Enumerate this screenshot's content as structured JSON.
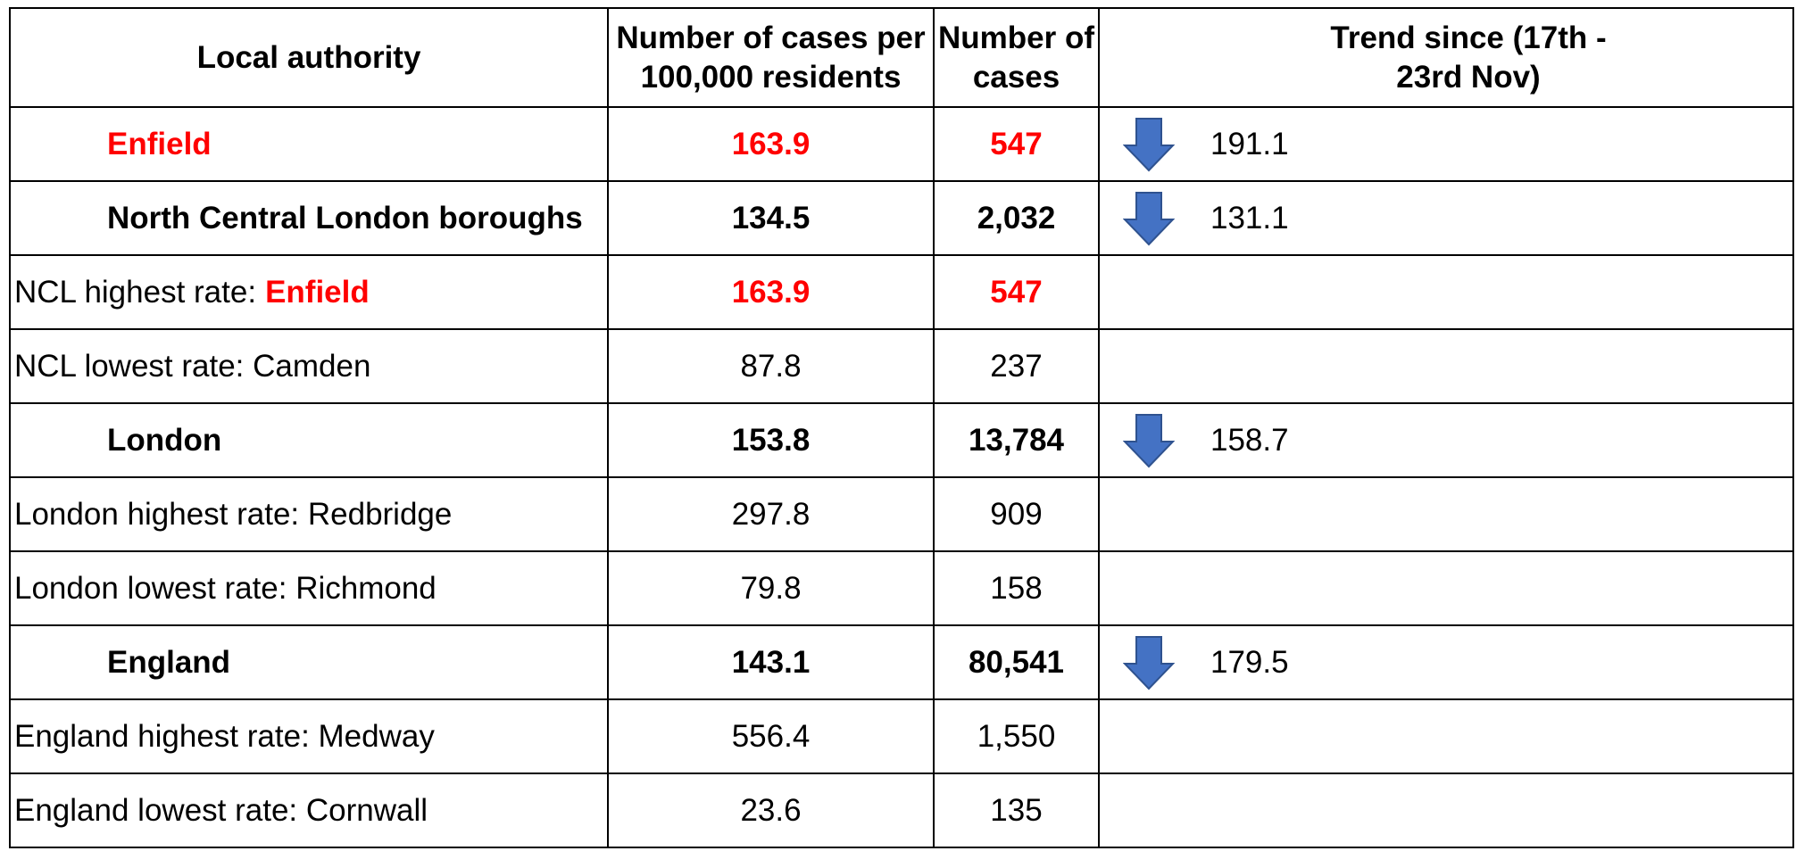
{
  "table": {
    "header": [
      "Local authority",
      "Number of cases per 100,000 residents",
      "Number of cases",
      "Trend since (17th - 23rd Nov)"
    ],
    "rows": [
      {
        "label": "Enfield",
        "rate": 163.9,
        "cases": 547,
        "trend": 191.1
      },
      {
        "label": "North Central London boroughs",
        "rate": 134.5,
        "cases": "2,032",
        "trend": 131.1
      },
      {
        "label": "NCL highest rate:",
        "label_highlight": "Enfield",
        "rate": 163.9,
        "cases": 547
      },
      {
        "label": "NCL lowest rate: Camden",
        "rate": 87.8,
        "cases": 237
      },
      {
        "label": "London",
        "rate": 153.8,
        "cases": "13,784",
        "trend": 158.7
      },
      {
        "label": "London highest rate: Redbridge",
        "rate": 297.8,
        "cases": 909
      },
      {
        "label": "London lowest rate: Richmond",
        "rate": 79.8,
        "cases": 158
      },
      {
        "label": "England",
        "rate": 143.1,
        "cases": "80,541",
        "trend": 179.5
      },
      {
        "label": "England highest rate: Medway",
        "rate": 556.4,
        "cases": "1,550"
      },
      {
        "label": "England lowest rate: Cornwall",
        "rate": 23.6,
        "cases": 135
      }
    ]
  }
}
